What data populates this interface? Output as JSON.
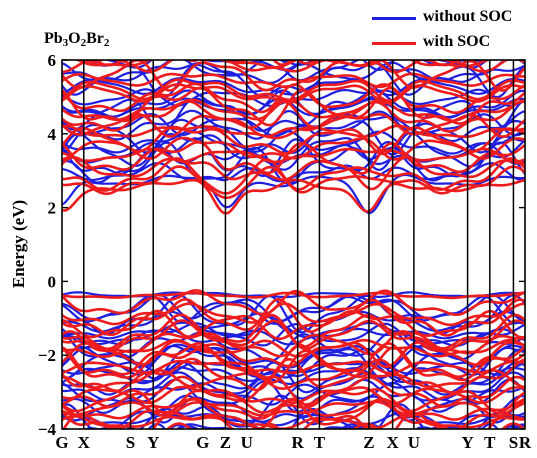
{
  "chart_data": {
    "type": "line",
    "title": "",
    "xlabel": "",
    "ylabel": "Energy (eV)",
    "ylim": [
      -4,
      6
    ],
    "yticks": [
      -4,
      -2,
      0,
      2,
      4,
      6
    ],
    "ytick_labels": [
      "−4",
      "−2",
      "0",
      "2",
      "4",
      "6"
    ],
    "kpoints": [
      "G",
      "X",
      "S",
      "Y",
      "G",
      "Z",
      "U",
      "R",
      "T",
      "Z",
      "X",
      "U",
      "Y",
      "T",
      "S",
      "R"
    ],
    "kpoint_positions": [
      0,
      0.047,
      0.148,
      0.197,
      0.304,
      0.353,
      0.399,
      0.509,
      0.556,
      0.663,
      0.714,
      0.76,
      0.876,
      0.924,
      0.975,
      1.0
    ],
    "legend_position": "top-right",
    "formula": {
      "base1": "Pb",
      "sub1": "3",
      "base2": "O",
      "sub2": "2",
      "base3": "Br",
      "sub3": "2"
    },
    "series": [
      {
        "name": "without SOC",
        "color": "#1f1fe0",
        "cbm": 1.98,
        "vbm": -0.28
      },
      {
        "name": "with SOC",
        "color": "#ee1c1c",
        "cbm": 1.85,
        "vbm": -0.3
      }
    ]
  }
}
